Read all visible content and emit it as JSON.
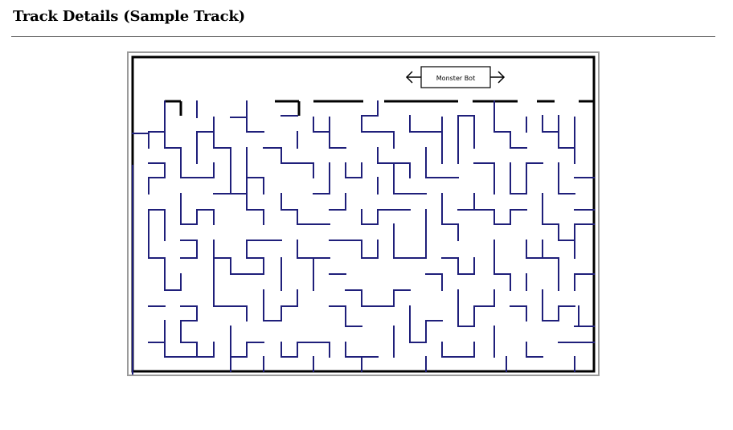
{
  "page": {
    "title": "Track Details (Sample Track)"
  },
  "track": {
    "bot_label": "Monster Bot",
    "colors": {
      "maze_wall": "#1f1f7a",
      "border": "#000000",
      "frame": "#9a9a9a",
      "background": "#ffffff"
    },
    "icons": [
      "left-arrow-icon",
      "right-arrow-icon"
    ]
  }
}
